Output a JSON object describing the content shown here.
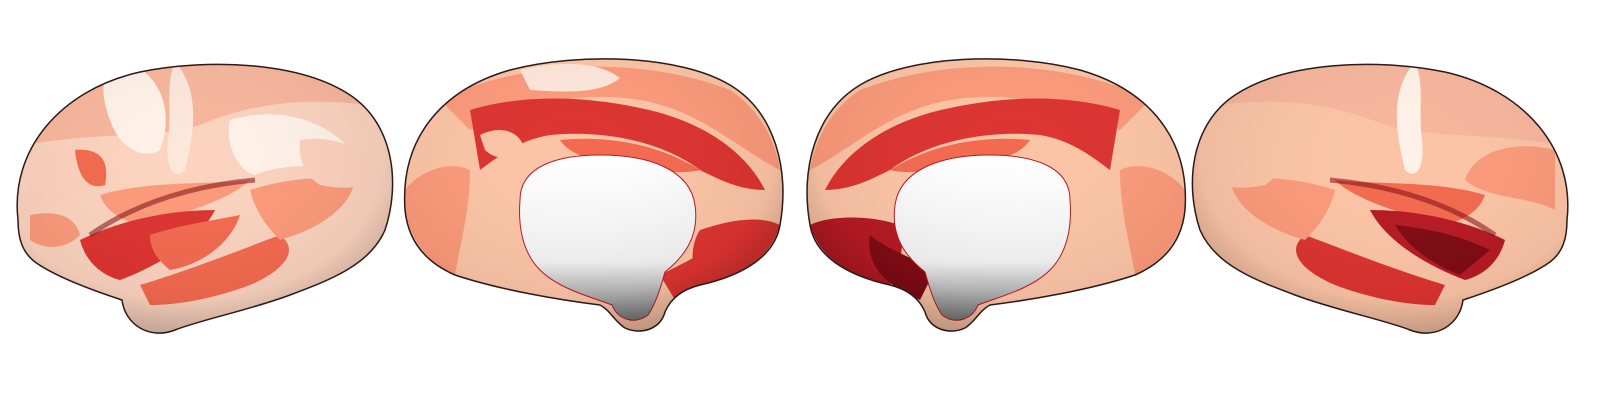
{
  "figure": {
    "views": [
      {
        "id": "left-lateral"
      },
      {
        "id": "left-medial"
      },
      {
        "id": "right-medial"
      },
      {
        "id": "right-lateral"
      }
    ],
    "colormap": {
      "name": "reds",
      "colors": [
        "#fff1e8",
        "#fcc4a6",
        "#fb9a7a",
        "#f3694f",
        "#dc3330",
        "#b61924",
        "#7f0b13"
      ]
    },
    "background": "#ffffff"
  }
}
